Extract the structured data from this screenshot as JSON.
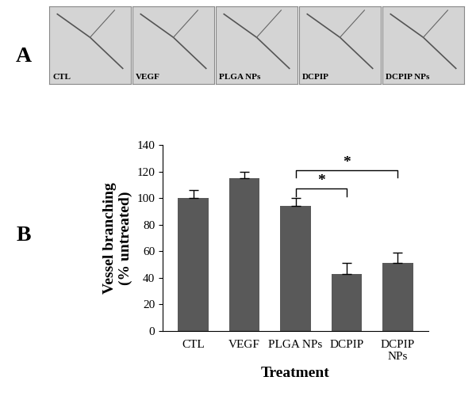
{
  "panel_labels": [
    "A",
    "B"
  ],
  "image_labels": [
    "CTL",
    "VEGF",
    "PLGA NPs",
    "DCPIP",
    "DCPIP NPs"
  ],
  "chart_data": {
    "type": "bar",
    "categories": [
      "CTL",
      "VEGF",
      "PLGA NPs",
      "DCPIP",
      "DCPIP\nNPs"
    ],
    "values": [
      100,
      115,
      94,
      43,
      51
    ],
    "errors": [
      6,
      5,
      6,
      8,
      8
    ],
    "color": "#595959",
    "x_label": "Treatment",
    "y_label": "Vessel branching\n(% untreated)",
    "ylim": [
      0,
      140
    ],
    "yticks": [
      0,
      20,
      40,
      60,
      80,
      100,
      120,
      140
    ],
    "comparisons": [
      {
        "from": 2,
        "to": 3,
        "label": "*"
      },
      {
        "from": 2,
        "to": 4,
        "label": "*"
      }
    ]
  }
}
